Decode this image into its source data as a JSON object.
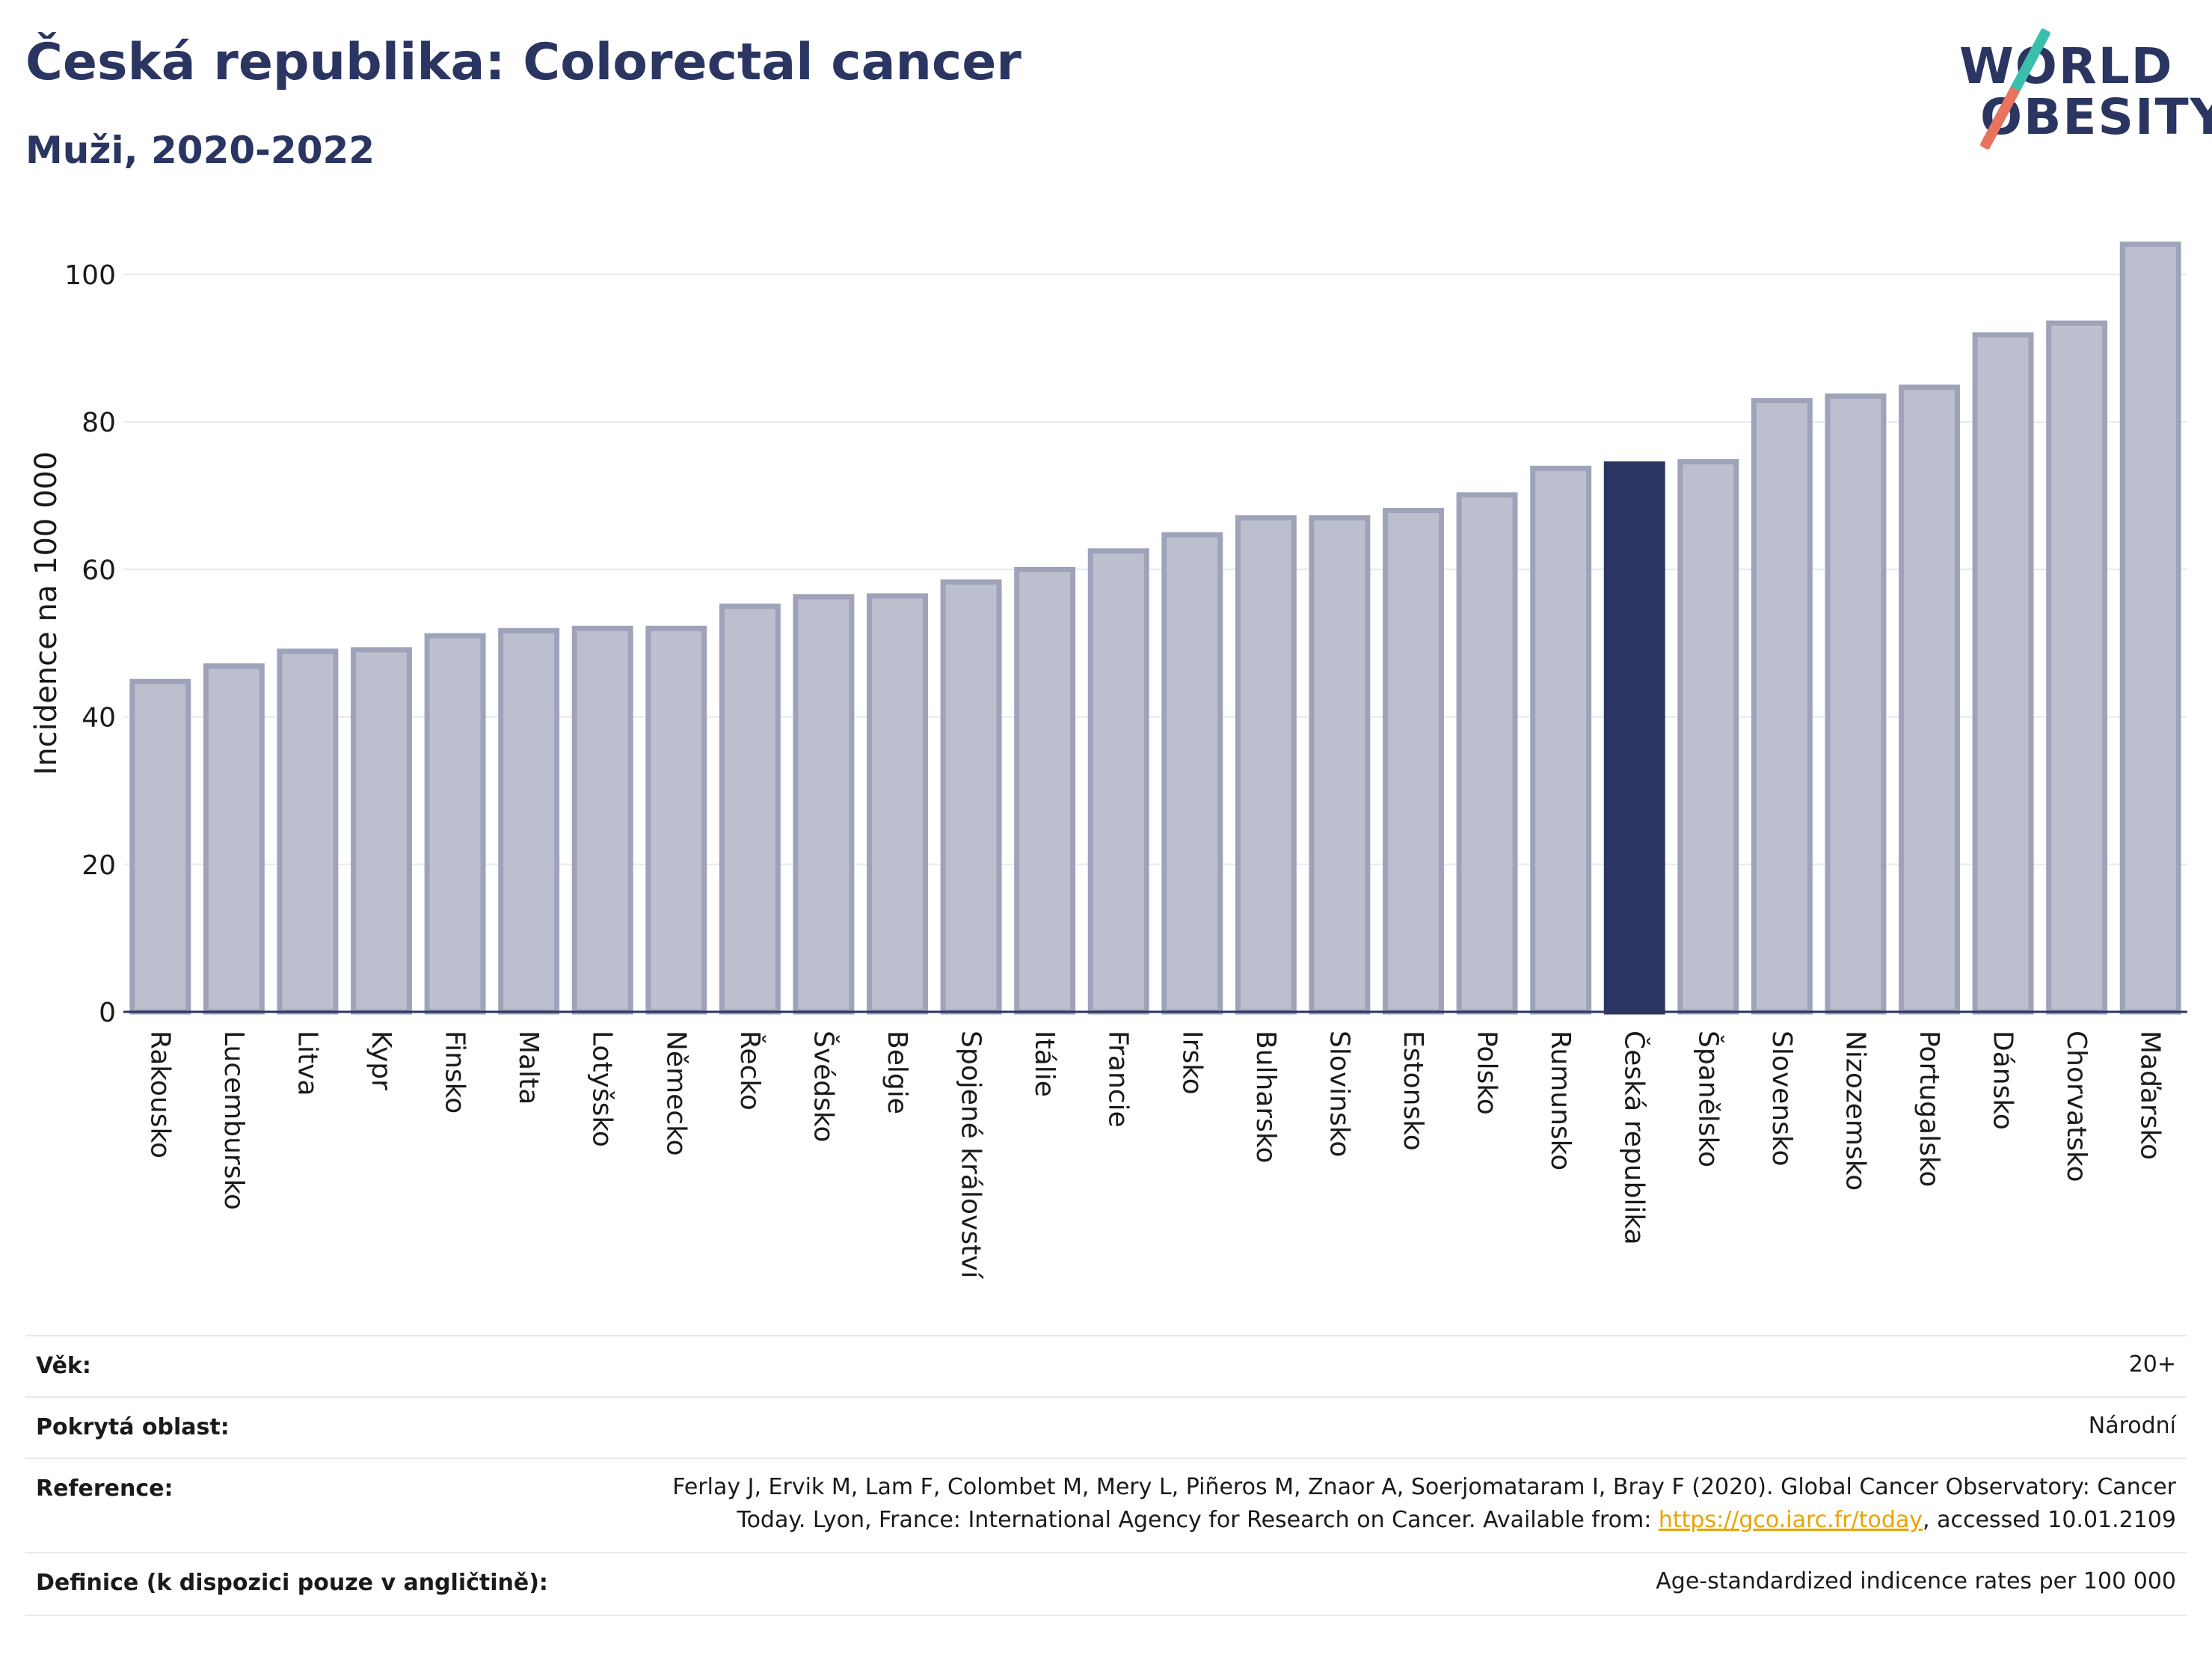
{
  "header": {
    "title": "Česká republika: Colorectal cancer",
    "subtitle": "Muži, 2020-2022"
  },
  "logo": {
    "line1": "WORLD",
    "line2": "OBESITY"
  },
  "chart_data": {
    "type": "bar",
    "ylabel": "Incidence na 100 000",
    "ylim": [
      0,
      106
    ],
    "yticks": [
      0,
      20,
      40,
      60,
      80,
      100
    ],
    "grid": true,
    "highlight": "Česká republika",
    "colors": {
      "bar": "#bcbfce",
      "bar_edge": "#9ea3ba",
      "highlight": "#2b3561",
      "grid": "#e5e8ef",
      "axis": "#2b3561"
    },
    "categories": [
      "Rakousko",
      "Lucembursko",
      "Litva",
      "Kypr",
      "Finsko",
      "Malta",
      "Lotyšsko",
      "Německo",
      "Řecko",
      "Švédsko",
      "Belgie",
      "Spojené království",
      "Itálie",
      "Francie",
      "Irsko",
      "Bulharsko",
      "Slovinsko",
      "Estonsko",
      "Polsko",
      "Rumunsko",
      "Česká republika",
      "Španělsko",
      "Slovensko",
      "Nizozemsko",
      "Portugalsko",
      "Dánsko",
      "Chorvatsko",
      "Maďarsko"
    ],
    "values": [
      44.8,
      46.9,
      48.9,
      49.1,
      51.0,
      51.7,
      52.0,
      52.0,
      55.0,
      56.3,
      56.4,
      58.3,
      60.0,
      62.5,
      64.7,
      67.0,
      67.0,
      68.0,
      70.1,
      73.7,
      74.3,
      74.6,
      82.9,
      83.5,
      84.7,
      91.8,
      93.4,
      104.1
    ]
  },
  "info": {
    "age_label": "Věk:",
    "age_value": "20+",
    "coverage_label": "Pokrytá oblast:",
    "coverage_value": "Národní",
    "reference_label": "Reference:",
    "reference_text_1": "Ferlay J, Ervik M, Lam F, Colombet M, Mery L, Piñeros M, Znaor A, Soerjomataram I, Bray F (2020). Global Cancer Observatory: Cancer",
    "reference_text_2": "Today. Lyon, France: International Agency for Research on Cancer. Available from: ",
    "reference_link": "https://gco.iarc.fr/today",
    "reference_text_3": ", accessed 10.01.2109",
    "definition_label": "Definice (k dispozici pouze v angličtině):",
    "definition_value": "Age-standardized indicence rates per 100 000"
  }
}
